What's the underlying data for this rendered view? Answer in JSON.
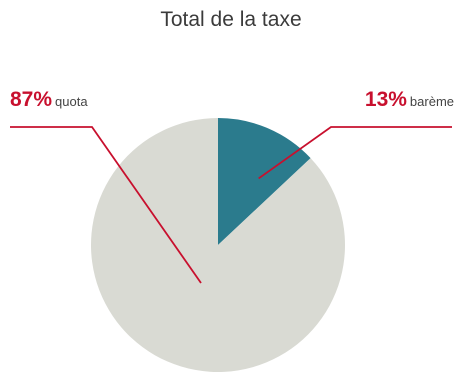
{
  "chart_data": {
    "type": "pie",
    "title": "Total de la taxe",
    "slices": [
      {
        "label": "barème",
        "value": 13,
        "value_text": "13%",
        "color": "#2b7b8d"
      },
      {
        "label": "quota",
        "value": 87,
        "value_text": "87%",
        "color": "#d9dad3"
      }
    ],
    "start_angle": "12 o'clock, clockwise",
    "callout_color": "#c8102e",
    "legend": "none"
  }
}
